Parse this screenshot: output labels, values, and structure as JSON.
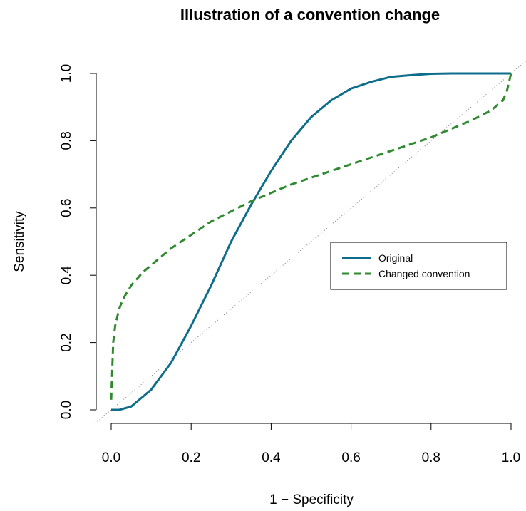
{
  "chart_data": {
    "type": "line",
    "title": "Illustration of a convention change",
    "xlabel": "1 − Specificity",
    "ylabel": "Sensitivity",
    "xlim": [
      0,
      1
    ],
    "ylim": [
      0,
      1
    ],
    "x_ticks": [
      "0.0",
      "0.2",
      "0.4",
      "0.6",
      "0.8",
      "1.0"
    ],
    "y_ticks": [
      "0.0",
      "0.2",
      "0.4",
      "0.6",
      "0.8",
      "1.0"
    ],
    "grid": false,
    "legend_position": "right",
    "reference_line": {
      "style": "dotted",
      "color": "#7f7f7f",
      "x": [
        -0.04,
        1.04
      ],
      "y": [
        -0.04,
        1.04
      ]
    },
    "series": [
      {
        "name": "Original",
        "color": "#0f6d8c",
        "style": "solid",
        "x": [
          0.0,
          0.02,
          0.05,
          0.08,
          0.1,
          0.15,
          0.2,
          0.25,
          0.3,
          0.35,
          0.4,
          0.45,
          0.5,
          0.55,
          0.6,
          0.65,
          0.7,
          0.75,
          0.8,
          0.85,
          0.9,
          0.95,
          1.0
        ],
        "y": [
          0.0,
          0.0,
          0.01,
          0.04,
          0.06,
          0.14,
          0.25,
          0.37,
          0.5,
          0.61,
          0.71,
          0.8,
          0.87,
          0.92,
          0.955,
          0.975,
          0.99,
          0.995,
          0.999,
          1.0,
          1.0,
          1.0,
          1.0
        ]
      },
      {
        "name": "Changed convention",
        "color": "#2f8a2f",
        "style": "dashed",
        "x": [
          0.0,
          0.005,
          0.01,
          0.02,
          0.03,
          0.05,
          0.08,
          0.1,
          0.15,
          0.2,
          0.25,
          0.3,
          0.35,
          0.4,
          0.45,
          0.5,
          0.55,
          0.6,
          0.65,
          0.7,
          0.75,
          0.8,
          0.85,
          0.9,
          0.95,
          0.98,
          0.99,
          1.0
        ],
        "y": [
          0.03,
          0.2,
          0.25,
          0.3,
          0.33,
          0.37,
          0.41,
          0.43,
          0.48,
          0.52,
          0.56,
          0.59,
          0.62,
          0.645,
          0.67,
          0.69,
          0.71,
          0.73,
          0.75,
          0.77,
          0.79,
          0.81,
          0.835,
          0.86,
          0.89,
          0.92,
          0.95,
          1.0
        ]
      }
    ]
  }
}
